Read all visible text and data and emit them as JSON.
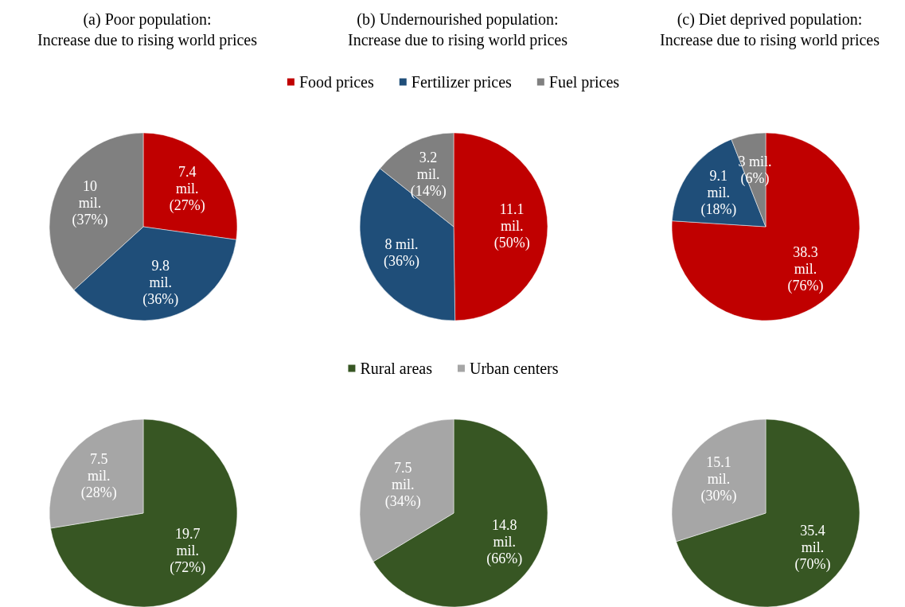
{
  "chart_data": [
    {
      "type": "pie",
      "title": "(a) Poor population:\nIncrease due to rising world prices",
      "categories": [
        null,
        null,
        null
      ],
      "values": [
        7.4,
        9.8,
        10
      ],
      "colors": [
        "#c00000",
        "#1f4e79",
        "#808080"
      ],
      "value_labels": [
        "7.4\nmil.\n(27%)",
        "9.8\nmil.\n(36%)",
        "10\nmil.\n(37%)"
      ]
    },
    {
      "type": "pie",
      "title": "(b) Undernourished population:\nIncrease due to rising world prices",
      "categories": [
        "Food prices",
        "Fertilizer prices",
        "Fuel prices"
      ],
      "values": [
        11.1,
        8,
        3.2
      ],
      "colors": [
        "#c00000",
        "#1f4e79",
        "#808080"
      ],
      "value_labels": [
        "11.1\nmil.\n(50%)",
        "8 mil.\n(36%)",
        "3.2\nmil.\n(14%)"
      ],
      "legend": "top"
    },
    {
      "type": "pie",
      "title": "(c) Diet deprived population:\nIncrease due to rising world prices",
      "categories": [
        null,
        null,
        null
      ],
      "values": [
        38.3,
        9.1,
        3
      ],
      "colors": [
        "#c00000",
        "#1f4e79",
        "#808080"
      ],
      "value_labels": [
        "38.3\nmil.\n(76%)",
        "9.1\nmil.\n(18%)",
        "3 mil.\n(6%)"
      ]
    },
    {
      "type": "pie",
      "categories": [
        null,
        null
      ],
      "values": [
        19.7,
        7.5
      ],
      "colors": [
        "#375623",
        "#a6a6a6"
      ],
      "value_labels": [
        "19.7\nmil.\n(72%)",
        "7.5\nmil.\n(28%)"
      ]
    },
    {
      "type": "pie",
      "categories": [
        "Rural areas",
        "Urban centers"
      ],
      "values": [
        14.8,
        7.5
      ],
      "colors": [
        "#375623",
        "#a6a6a6"
      ],
      "value_labels": [
        "14.8\nmil.\n(66%)",
        "7.5\nmil.\n(34%)"
      ],
      "legend": "top"
    },
    {
      "type": "pie",
      "categories": [
        null,
        null
      ],
      "values": [
        35.4,
        15.1
      ],
      "colors": [
        "#375623",
        "#a6a6a6"
      ],
      "value_labels": [
        "35.4\nmil.\n(70%)",
        "15.1\nmil.\n(30%)"
      ]
    }
  ]
}
